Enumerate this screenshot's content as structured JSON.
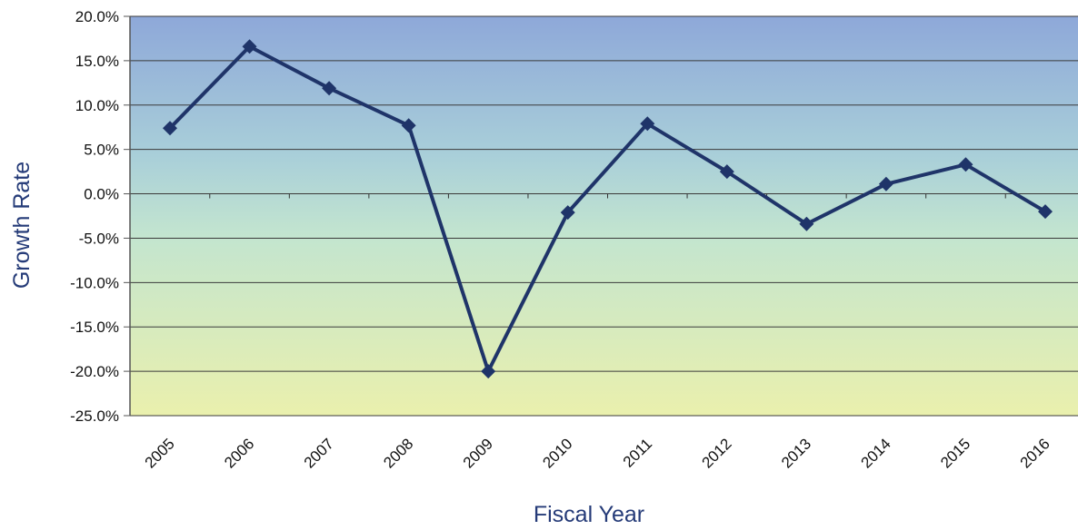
{
  "chart_data": {
    "type": "line",
    "title": "",
    "xlabel": "Fiscal Year",
    "ylabel": "Growth Rate",
    "categories": [
      "2005",
      "2006",
      "2007",
      "2008",
      "2009",
      "2010",
      "2011",
      "2012",
      "2013",
      "2014",
      "2015",
      "2016"
    ],
    "series": [
      {
        "values": [
          7.4,
          16.6,
          11.9,
          7.7,
          -20.0,
          -2.1,
          7.9,
          2.5,
          -3.4,
          1.1,
          3.3,
          -2.0
        ]
      }
    ],
    "ylim": [
      -25,
      20
    ],
    "yticks": [
      "20.0%",
      "15.0%",
      "10.0%",
      "5.0%",
      "0.0%",
      "-5.0%",
      "-10.0%",
      "-15.0%",
      "-20.0%",
      "-25.0%"
    ],
    "grid": true,
    "legend": "none",
    "colors": {
      "line": "#1f3469",
      "background_top": "#8fa9d8",
      "background_mid": "#b4dcd4",
      "background_bottom": "#e8efb0",
      "axis_title": "#253b78"
    }
  }
}
